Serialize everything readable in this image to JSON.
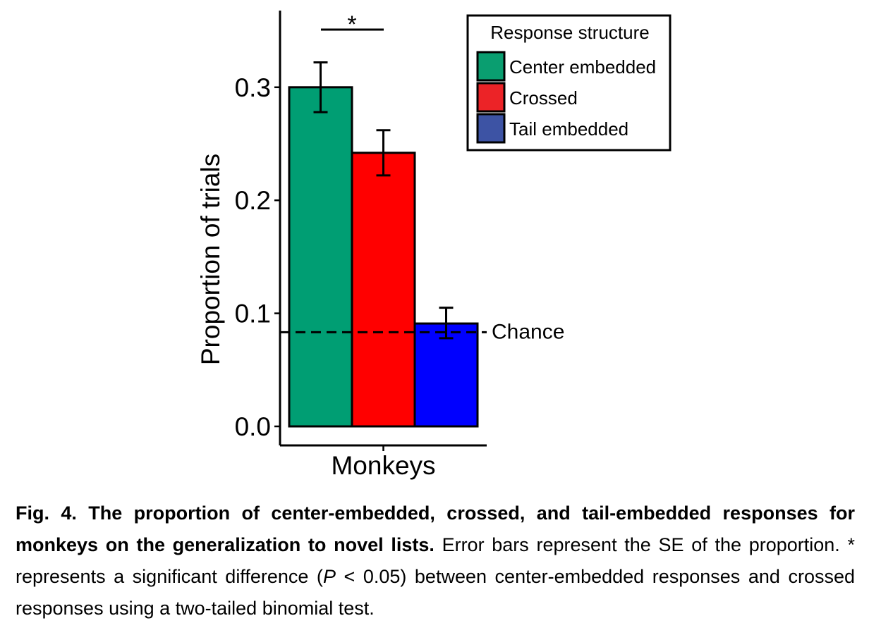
{
  "chart_data": {
    "type": "bar",
    "categories": [
      "Monkeys"
    ],
    "series": [
      {
        "name": "Center embedded",
        "values": [
          0.3
        ],
        "se_low": [
          0.278
        ],
        "se_high": [
          0.322
        ],
        "color": "#009E73"
      },
      {
        "name": "Crossed",
        "values": [
          0.242
        ],
        "se_low": [
          0.222
        ],
        "se_high": [
          0.262
        ],
        "color": "#FF0000"
      },
      {
        "name": "Tail embedded",
        "values": [
          0.091
        ],
        "se_low": [
          0.078
        ],
        "se_high": [
          0.105
        ],
        "color": "#0000FF"
      }
    ],
    "legend_colors": [
      "#0A9E70",
      "#EC2327",
      "#3D53A4"
    ],
    "ylabel": "Proportion of trials",
    "xlabel": "",
    "ylim": [
      0,
      0.37
    ],
    "yticks": [
      0.0,
      0.1,
      0.2,
      0.3
    ],
    "ytick_labels": [
      "0.0",
      "0.1",
      "0.2",
      "0.3"
    ],
    "chance_level": 0.0833,
    "chance_label": "Chance",
    "legend_title": "Response structure",
    "legend_position": "top-right",
    "significance_marker": "*",
    "grid": false
  },
  "caption": {
    "bold": "Fig. 4. The proportion of center-embedded, crossed, and tail-embedded responses for monkeys on the generalization to novel lists.",
    "text_1": " Error bars represent the SE of the proportion. * represents a significant difference (",
    "italic": "P",
    "text_2": " < 0.05) between center-embedded responses and crossed responses using a two-tailed binomial test."
  }
}
